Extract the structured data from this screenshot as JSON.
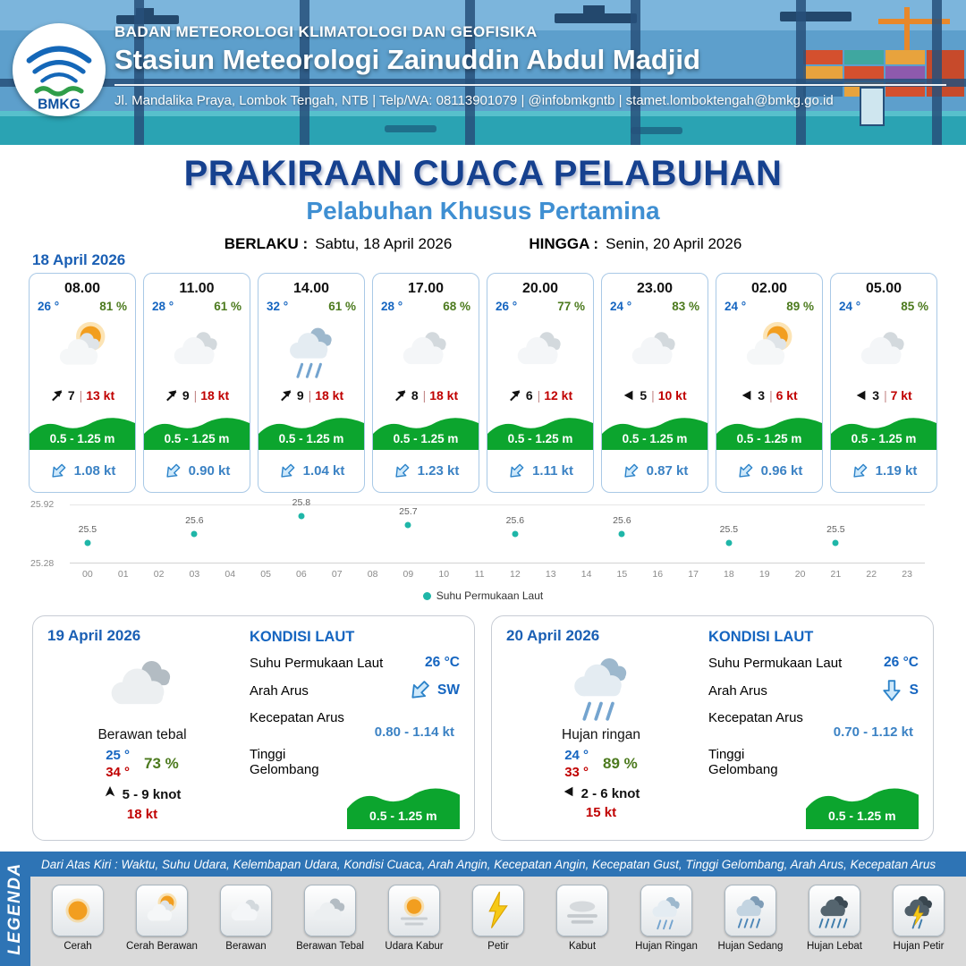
{
  "colors": {
    "header_blue": "#5D9FCC",
    "brand_bar_blue": "#2E74B5",
    "title_navy": "#16418F",
    "subtitle_blue": "#3F8FD2",
    "temp_blue": "#1565C0",
    "humidity_green": "#4C7A1E",
    "gust_red": "#C00000",
    "wave_green": "#0CA52E",
    "current_blue": "#3B82C4",
    "sst_dot_teal": "#1FB6A8"
  },
  "header": {
    "agency_line": "BADAN METEOROLOGI KLIMATOLOGI DAN GEOFISIKA",
    "station_name": "Stasiun Meteorologi Zainuddin Abdul Madjid",
    "contact_line": "Jl. Mandalika Praya, Lombok Tengah, NTB | Telp/WA: 08113901079 | @infobmkgntb | stamet.lomboktengah@bmkg.go.id",
    "logo_text": "BMKG"
  },
  "title": {
    "main": "PRAKIRAAN CUACA PELABUHAN",
    "subtitle": "Pelabuhan Khusus Pertamina",
    "valid_from_label": "BERLAKU :",
    "valid_from_value": "Sabtu, 18 April 2026",
    "valid_to_label": "HINGGA :",
    "valid_to_value": "Senin, 20 April 2026"
  },
  "forecast_date": "18 April 2026",
  "forecast_cards": [
    {
      "time": "08.00",
      "temp": "26 °",
      "humidity": "81 %",
      "weather_icon": "cerah-berawan",
      "wind_icon": "barb",
      "wind_speed": "7",
      "wind_gust": "13 kt",
      "wave_height": "0.5 - 1.25 m",
      "current_dir": "SW",
      "current_speed": "1.08 kt"
    },
    {
      "time": "11.00",
      "temp": "28 °",
      "humidity": "61 %",
      "weather_icon": "berawan",
      "wind_icon": "barb",
      "wind_speed": "9",
      "wind_gust": "18 kt",
      "wave_height": "0.5 - 1.25 m",
      "current_dir": "SW",
      "current_speed": "0.90 kt"
    },
    {
      "time": "14.00",
      "temp": "32 °",
      "humidity": "61 %",
      "weather_icon": "hujan-ringan",
      "wind_icon": "barb",
      "wind_speed": "9",
      "wind_gust": "18 kt",
      "wave_height": "0.5 - 1.25 m",
      "current_dir": "SW",
      "current_speed": "1.04 kt"
    },
    {
      "time": "17.00",
      "temp": "28 °",
      "humidity": "68 %",
      "weather_icon": "berawan",
      "wind_icon": "barb",
      "wind_speed": "8",
      "wind_gust": "18 kt",
      "wave_height": "0.5 - 1.25 m",
      "current_dir": "SW",
      "current_speed": "1.23 kt"
    },
    {
      "time": "20.00",
      "temp": "26 °",
      "humidity": "77 %",
      "weather_icon": "berawan",
      "wind_icon": "barb",
      "wind_speed": "6",
      "wind_gust": "12 kt",
      "wave_height": "0.5 - 1.25 m",
      "current_dir": "SW",
      "current_speed": "1.11 kt"
    },
    {
      "time": "23.00",
      "temp": "24 °",
      "humidity": "83 %",
      "weather_icon": "berawan",
      "wind_icon": "arrow-left",
      "wind_speed": "5",
      "wind_gust": "10 kt",
      "wave_height": "0.5 - 1.25 m",
      "current_dir": "SW",
      "current_speed": "0.87 kt"
    },
    {
      "time": "02.00",
      "temp": "24 °",
      "humidity": "89 %",
      "weather_icon": "cerah-berawan",
      "wind_icon": "arrow-left",
      "wind_speed": "3",
      "wind_gust": "6 kt",
      "wave_height": "0.5 - 1.25 m",
      "current_dir": "SW",
      "current_speed": "0.96 kt"
    },
    {
      "time": "05.00",
      "temp": "24 °",
      "humidity": "85 %",
      "weather_icon": "berawan",
      "wind_icon": "arrow-left",
      "wind_speed": "3",
      "wind_gust": "7 kt",
      "wave_height": "0.5 - 1.25 m",
      "current_dir": "SW",
      "current_speed": "1.19 kt"
    }
  ],
  "chart_data": {
    "type": "scatter",
    "legend": "Suhu Permukaan Laut",
    "x": [
      0,
      3,
      6,
      9,
      12,
      15,
      18,
      21
    ],
    "values": [
      25.5,
      25.6,
      25.8,
      25.7,
      25.6,
      25.6,
      25.5,
      25.5
    ],
    "x_ticks": [
      "00",
      "01",
      "02",
      "03",
      "04",
      "05",
      "06",
      "07",
      "08",
      "09",
      "10",
      "11",
      "12",
      "13",
      "14",
      "15",
      "16",
      "17",
      "18",
      "19",
      "20",
      "21",
      "22",
      "23"
    ],
    "ylim": [
      25.28,
      25.92
    ],
    "y_tick_labels": [
      "25.92",
      "25.28"
    ],
    "dot_color": "#1FB6A8",
    "grid": true,
    "legend_position": "bottom"
  },
  "daily_cards": [
    {
      "date": "19 April 2026",
      "weather_icon": "berawan-tebal",
      "condition": "Berawan tebal",
      "temp_min": "25 °",
      "temp_max": "34 °",
      "humidity": "73 %",
      "wind_icon": "arrow-up",
      "wind_range": "5 - 9 knot",
      "wind_gust": "18 kt",
      "sea": {
        "title": "KONDISI LAUT",
        "sst_label": "Suhu Permukaan Laut",
        "sst_value": "26 °C",
        "current_dir_label": "Arah Arus",
        "current_dir": "SW",
        "current_speed_label": "Kecepatan Arus",
        "current_speed": "0.80 - 1.14 kt",
        "wave_label": "Tinggi Gelombang",
        "wave_value": "0.5 - 1.25 m"
      }
    },
    {
      "date": "20 April 2026",
      "weather_icon": "hujan-ringan",
      "condition": "Hujan ringan",
      "temp_min": "24 °",
      "temp_max": "33 °",
      "humidity": "89 %",
      "wind_icon": "arrow-left",
      "wind_range": "2 - 6 knot",
      "wind_gust": "15 kt",
      "sea": {
        "title": "KONDISI LAUT",
        "sst_label": "Suhu Permukaan Laut",
        "sst_value": "26 °C",
        "current_dir_label": "Arah Arus",
        "current_dir": "S",
        "current_speed_label": "Kecepatan Arus",
        "current_speed": "0.70 - 1.12 kt",
        "wave_label": "Tinggi Gelombang",
        "wave_value": "0.5 - 1.25 m"
      }
    }
  ],
  "legend": {
    "vertical_label": "LEGENDA",
    "description": "Dari Atas Kiri : Waktu, Suhu Udara, Kelembapan Udara, Kondisi Cuaca, Arah Angin, Kecepatan Angin, Kecepatan Gust, Tinggi Gelombang, Arah Arus, Kecepatan Arus",
    "items": [
      {
        "label": "Cerah",
        "icon": "cerah"
      },
      {
        "label": "Cerah Berawan",
        "icon": "cerah-berawan"
      },
      {
        "label": "Berawan",
        "icon": "berawan"
      },
      {
        "label": "Berawan Tebal",
        "icon": "berawan-tebal"
      },
      {
        "label": "Udara Kabur",
        "icon": "udara-kabur"
      },
      {
        "label": "Petir",
        "icon": "petir"
      },
      {
        "label": "Kabut",
        "icon": "kabut"
      },
      {
        "label": "Hujan Ringan",
        "icon": "hujan-ringan"
      },
      {
        "label": "Hujan Sedang",
        "icon": "hujan-sedang"
      },
      {
        "label": "Hujan Lebat",
        "icon": "hujan-lebat"
      },
      {
        "label": "Hujan Petir",
        "icon": "hujan-petir"
      }
    ]
  }
}
